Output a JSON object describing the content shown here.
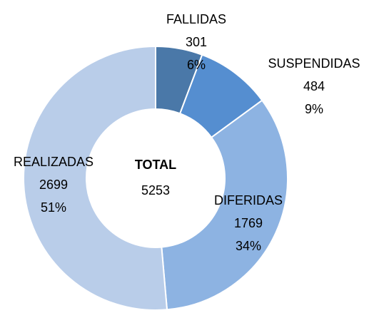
{
  "chart_data": {
    "type": "donut",
    "categories": [
      "FALLIDAS",
      "SUSPENDIDAS",
      "DIFERIDAS",
      "REALIZADAS"
    ],
    "values": [
      301,
      484,
      1769,
      2699
    ],
    "percent_labels": [
      "6%",
      "9%",
      "34%",
      "51%"
    ],
    "colors": [
      "#4a78a8",
      "#558ed0",
      "#8db3e2",
      "#b9cde9"
    ],
    "total_label": "TOTAL",
    "total": 5253
  }
}
